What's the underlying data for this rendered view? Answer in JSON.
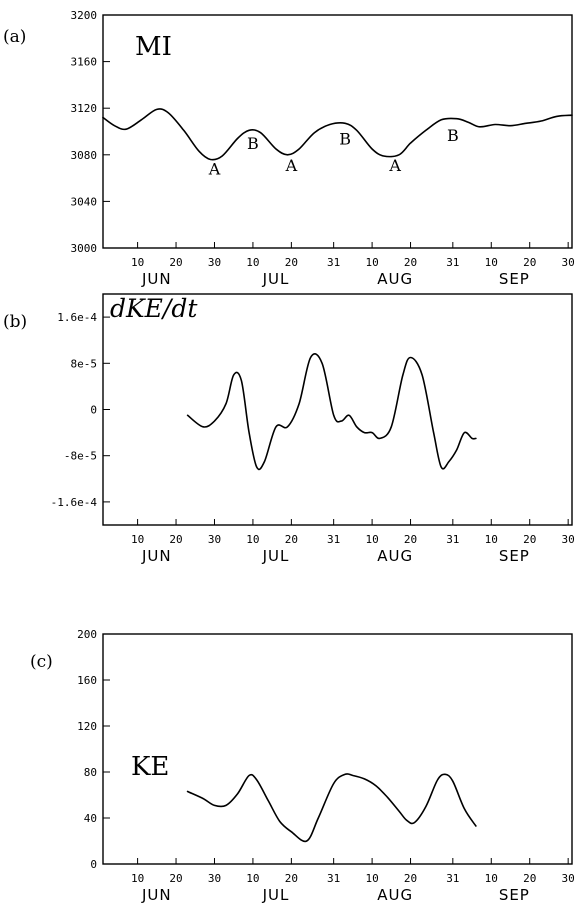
{
  "chart_data": [
    {
      "type": "line",
      "panel_label": "(a)",
      "title": "MI",
      "title_style": "upright",
      "ylim": [
        3000,
        3200
      ],
      "yticks": [
        3000,
        3040,
        3080,
        3120,
        3160,
        3200
      ],
      "ytick_labels": [
        "3000",
        "3040",
        "3080",
        "3120",
        "3160",
        "3200"
      ],
      "xlim": [
        0,
        122
      ],
      "xticks": [
        {
          "day": 9,
          "label": "10"
        },
        {
          "day": 19,
          "label": "20"
        },
        {
          "day": 29,
          "label": "30"
        },
        {
          "day": 39,
          "label": "10"
        },
        {
          "day": 49,
          "label": "20"
        },
        {
          "day": 60,
          "label": "31"
        },
        {
          "day": 70,
          "label": "10"
        },
        {
          "day": 80,
          "label": "20"
        },
        {
          "day": 91,
          "label": "31"
        },
        {
          "day": 101,
          "label": "10"
        },
        {
          "day": 111,
          "label": "20"
        },
        {
          "day": 121,
          "label": "30"
        }
      ],
      "month_labels": [
        {
          "day": 14,
          "label": "JUN"
        },
        {
          "day": 45,
          "label": "JUL"
        },
        {
          "day": 76,
          "label": "AUG"
        },
        {
          "day": 107,
          "label": "SEP"
        }
      ],
      "grid": false,
      "series": [
        {
          "x": [
            0,
            3,
            6,
            10,
            14,
            17,
            21,
            25,
            28,
            31,
            35,
            38,
            41,
            45,
            48,
            51,
            55,
            59,
            63,
            66,
            70,
            73,
            77,
            80,
            84,
            88,
            92,
            95,
            98,
            102,
            106,
            110,
            114,
            118,
            122
          ],
          "y": [
            3112,
            3105,
            3102,
            3110,
            3119,
            3116,
            3101,
            3083,
            3076,
            3079,
            3094,
            3101,
            3099,
            3085,
            3080,
            3085,
            3099,
            3106,
            3107,
            3101,
            3085,
            3079,
            3080,
            3090,
            3101,
            3110,
            3111,
            3108,
            3104,
            3106,
            3105,
            3107,
            3109,
            3113,
            3114
          ]
        }
      ],
      "annotations": [
        {
          "text": "A",
          "x": 29,
          "y": 3063
        },
        {
          "text": "B",
          "x": 39,
          "y": 3085
        },
        {
          "text": "A",
          "x": 49,
          "y": 3066
        },
        {
          "text": "B",
          "x": 63,
          "y": 3089
        },
        {
          "text": "A",
          "x": 76,
          "y": 3066
        },
        {
          "text": "B",
          "x": 91,
          "y": 3092
        }
      ]
    },
    {
      "type": "line",
      "panel_label": "(b)",
      "title": "dKE/dt",
      "title_style": "italic",
      "ylim": [
        -0.0002,
        0.0002
      ],
      "yticks": [
        -0.00016,
        -8e-05,
        0,
        8e-05,
        0.00016
      ],
      "ytick_labels": [
        "-1.6e-4",
        "-8e-5",
        "0",
        "8e-5",
        "1.6e-4"
      ],
      "xlim": [
        0,
        122
      ],
      "xticks": [
        {
          "day": 9,
          "label": "10"
        },
        {
          "day": 19,
          "label": "20"
        },
        {
          "day": 29,
          "label": "30"
        },
        {
          "day": 39,
          "label": "10"
        },
        {
          "day": 49,
          "label": "20"
        },
        {
          "day": 60,
          "label": "31"
        },
        {
          "day": 70,
          "label": "10"
        },
        {
          "day": 80,
          "label": "20"
        },
        {
          "day": 91,
          "label": "31"
        },
        {
          "day": 101,
          "label": "10"
        },
        {
          "day": 111,
          "label": "20"
        },
        {
          "day": 121,
          "label": "30"
        }
      ],
      "month_labels": [
        {
          "day": 14,
          "label": "JUN"
        },
        {
          "day": 45,
          "label": "JUL"
        },
        {
          "day": 76,
          "label": "AUG"
        },
        {
          "day": 107,
          "label": "SEP"
        }
      ],
      "grid": false,
      "series": [
        {
          "x": [
            22,
            26,
            29,
            32,
            34,
            36,
            38,
            40,
            42,
            45,
            48,
            51,
            54,
            57,
            60,
            62,
            64,
            66,
            68,
            70,
            72,
            75,
            78,
            80,
            83,
            86,
            88,
            90,
            92,
            94,
            96,
            97
          ],
          "y": [
            -1e-05,
            -3e-05,
            -2e-05,
            1e-05,
            6e-05,
            5e-05,
            -4e-05,
            -0.0001,
            -9e-05,
            -3e-05,
            -3e-05,
            1e-05,
            9e-05,
            8e-05,
            -1e-05,
            -2e-05,
            -1e-05,
            -3e-05,
            -4e-05,
            -4e-05,
            -5e-05,
            -3e-05,
            6e-05,
            9e-05,
            6e-05,
            -4e-05,
            -0.0001,
            -9e-05,
            -7e-05,
            -4e-05,
            -5e-05,
            -5e-05
          ]
        }
      ]
    },
    {
      "type": "line",
      "panel_label": "(c)",
      "title": "KE",
      "title_style": "upright",
      "ylim": [
        0,
        200
      ],
      "yticks": [
        0,
        40,
        80,
        120,
        160,
        200
      ],
      "ytick_labels": [
        "0",
        "40",
        "80",
        "120",
        "160",
        "200"
      ],
      "xlim": [
        0,
        122
      ],
      "xticks": [
        {
          "day": 9,
          "label": "10"
        },
        {
          "day": 19,
          "label": "20"
        },
        {
          "day": 29,
          "label": "30"
        },
        {
          "day": 39,
          "label": "10"
        },
        {
          "day": 49,
          "label": "20"
        },
        {
          "day": 60,
          "label": "31"
        },
        {
          "day": 70,
          "label": "10"
        },
        {
          "day": 80,
          "label": "20"
        },
        {
          "day": 91,
          "label": "31"
        },
        {
          "day": 101,
          "label": "10"
        },
        {
          "day": 111,
          "label": "20"
        },
        {
          "day": 121,
          "label": "30"
        }
      ],
      "month_labels": [
        {
          "day": 14,
          "label": "JUN"
        },
        {
          "day": 45,
          "label": "JUL"
        },
        {
          "day": 76,
          "label": "AUG"
        },
        {
          "day": 107,
          "label": "SEP"
        }
      ],
      "grid": false,
      "series": [
        {
          "x": [
            22,
            26,
            29,
            32,
            35,
            38,
            40,
            43,
            46,
            49,
            53,
            56,
            60,
            63,
            65,
            68,
            71,
            74,
            77,
            79,
            81,
            84,
            87,
            89,
            91,
            94,
            97
          ],
          "y": [
            63,
            57,
            51,
            51,
            61,
            77,
            73,
            55,
            37,
            28,
            20,
            40,
            70,
            78,
            77,
            74,
            68,
            58,
            46,
            38,
            36,
            50,
            73,
            78,
            72,
            48,
            33
          ]
        }
      ]
    }
  ]
}
